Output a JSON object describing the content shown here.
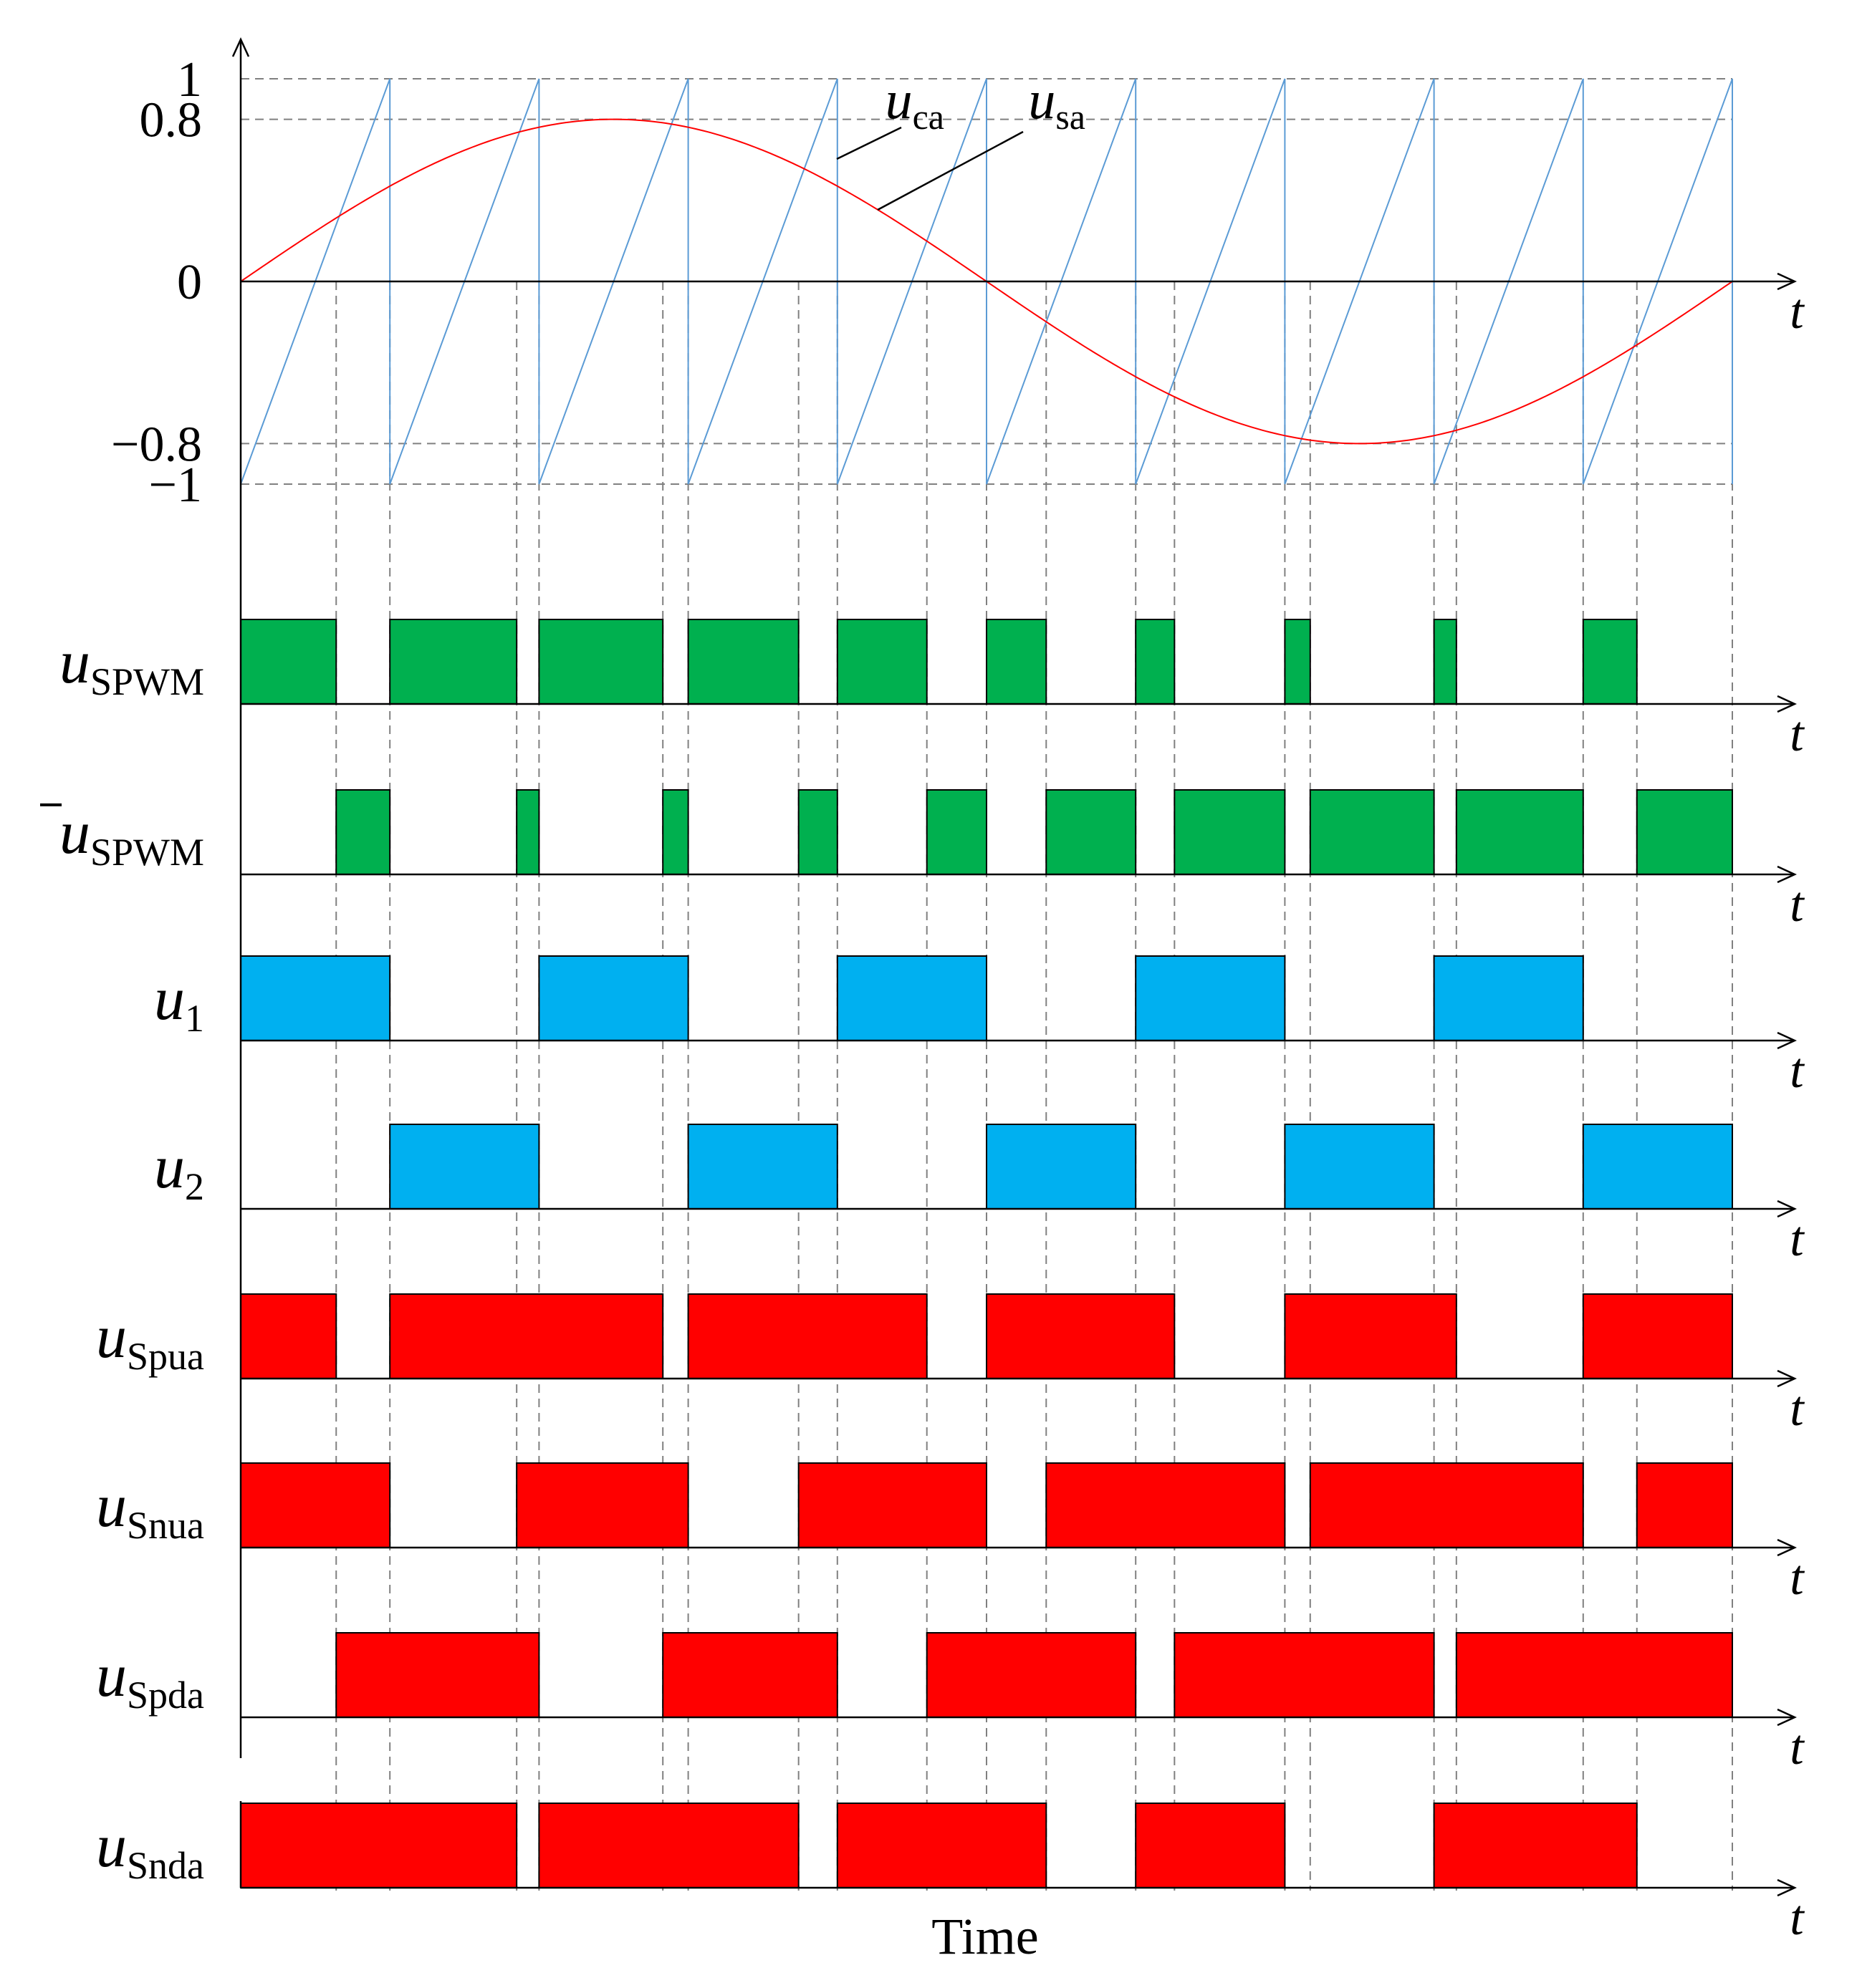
{
  "chart_data": {
    "type": "timing-diagram",
    "xlabel": "Time",
    "time_axis_label": "t",
    "x_range": [
      0,
      10
    ],
    "colors": {
      "carrier": "#5b9bd5",
      "modulating": "#ff0000",
      "spwm": "#00b04f",
      "drive": "#00b0f0",
      "switch": "#ff0000",
      "guide": "#808080"
    },
    "analog": {
      "ytick_labels": [
        "1",
        "0.8",
        "0",
        "−0.8",
        "−1"
      ],
      "ytick_values": [
        1,
        0.8,
        0,
        -0.8,
        -1
      ],
      "ylim": [
        -1,
        1
      ],
      "carrier": {
        "symbol": "u",
        "subscript": "ca",
        "shape": "sawtooth",
        "periods": 10,
        "min": -1,
        "max": 1
      },
      "modulating": {
        "symbol": "u",
        "subscript": "sa",
        "shape": "sine",
        "amplitude": 0.8,
        "cycles": 1
      }
    },
    "crossing_times": [
      0.64,
      1.0,
      1.85,
      2.0,
      2.83,
      3.0,
      3.74,
      4.0,
      4.6,
      5.0,
      5.4,
      6.0,
      6.26,
      7.0,
      7.17,
      8.0,
      8.15,
      9.0,
      9.36,
      10.0
    ],
    "series": [
      {
        "name": "uSPWM",
        "symbol": "u",
        "subscript": "SPWM",
        "overline": false,
        "color_key": "spwm",
        "high_intervals": [
          [
            0,
            0.64
          ],
          [
            1.0,
            1.85
          ],
          [
            2.0,
            2.83
          ],
          [
            3.0,
            3.74
          ],
          [
            4.0,
            4.6
          ],
          [
            5.0,
            5.4
          ],
          [
            6.0,
            6.26
          ],
          [
            7.0,
            7.17
          ],
          [
            8.0,
            8.15
          ],
          [
            9.0,
            9.36
          ]
        ]
      },
      {
        "name": "uSPWM-bar",
        "symbol": "u",
        "subscript": "SPWM",
        "overline": true,
        "color_key": "spwm",
        "high_intervals": [
          [
            0.64,
            1.0
          ],
          [
            1.85,
            2.0
          ],
          [
            2.83,
            3.0
          ],
          [
            3.74,
            4.0
          ],
          [
            4.6,
            5.0
          ],
          [
            5.4,
            6.0
          ],
          [
            6.26,
            7.0
          ],
          [
            7.17,
            8.0
          ],
          [
            8.15,
            9.0
          ],
          [
            9.36,
            10.0
          ]
        ]
      },
      {
        "name": "u1",
        "symbol": "u",
        "subscript": "1",
        "overline": false,
        "color_key": "drive",
        "high_intervals": [
          [
            0,
            1.0
          ],
          [
            2.0,
            3.0
          ],
          [
            4.0,
            5.0
          ],
          [
            6.0,
            7.0
          ],
          [
            8.0,
            9.0
          ]
        ]
      },
      {
        "name": "u2",
        "symbol": "u",
        "subscript": "2",
        "overline": false,
        "color_key": "drive",
        "high_intervals": [
          [
            1.0,
            2.0
          ],
          [
            3.0,
            4.0
          ],
          [
            5.0,
            6.0
          ],
          [
            7.0,
            8.0
          ],
          [
            9.0,
            10.0
          ]
        ]
      },
      {
        "name": "uSpua",
        "symbol": "u",
        "subscript": "Spua",
        "overline": false,
        "color_key": "switch",
        "high_intervals": [
          [
            0,
            0.64
          ],
          [
            1.0,
            2.83
          ],
          [
            3.0,
            4.6
          ],
          [
            5.0,
            6.26
          ],
          [
            7.0,
            8.15
          ],
          [
            9.0,
            10.0
          ]
        ]
      },
      {
        "name": "uSnua",
        "symbol": "u",
        "subscript": "Snua",
        "overline": false,
        "color_key": "switch",
        "high_intervals": [
          [
            0,
            1.0
          ],
          [
            1.85,
            3.0
          ],
          [
            3.74,
            5.0
          ],
          [
            5.4,
            7.0
          ],
          [
            7.17,
            9.0
          ],
          [
            9.36,
            10.0
          ]
        ]
      },
      {
        "name": "uSpda",
        "symbol": "u",
        "subscript": "Spda",
        "overline": false,
        "color_key": "switch",
        "high_intervals": [
          [
            0.64,
            2.0
          ],
          [
            2.83,
            4.0
          ],
          [
            4.6,
            6.0
          ],
          [
            6.26,
            8.0
          ],
          [
            8.15,
            10.0
          ]
        ]
      },
      {
        "name": "uSnda",
        "symbol": "u",
        "subscript": "Snda",
        "overline": false,
        "color_key": "switch",
        "high_intervals": [
          [
            0,
            1.85
          ],
          [
            2.0,
            3.74
          ],
          [
            4.0,
            5.4
          ],
          [
            6.0,
            7.0
          ],
          [
            8.0,
            9.36
          ]
        ]
      }
    ]
  }
}
